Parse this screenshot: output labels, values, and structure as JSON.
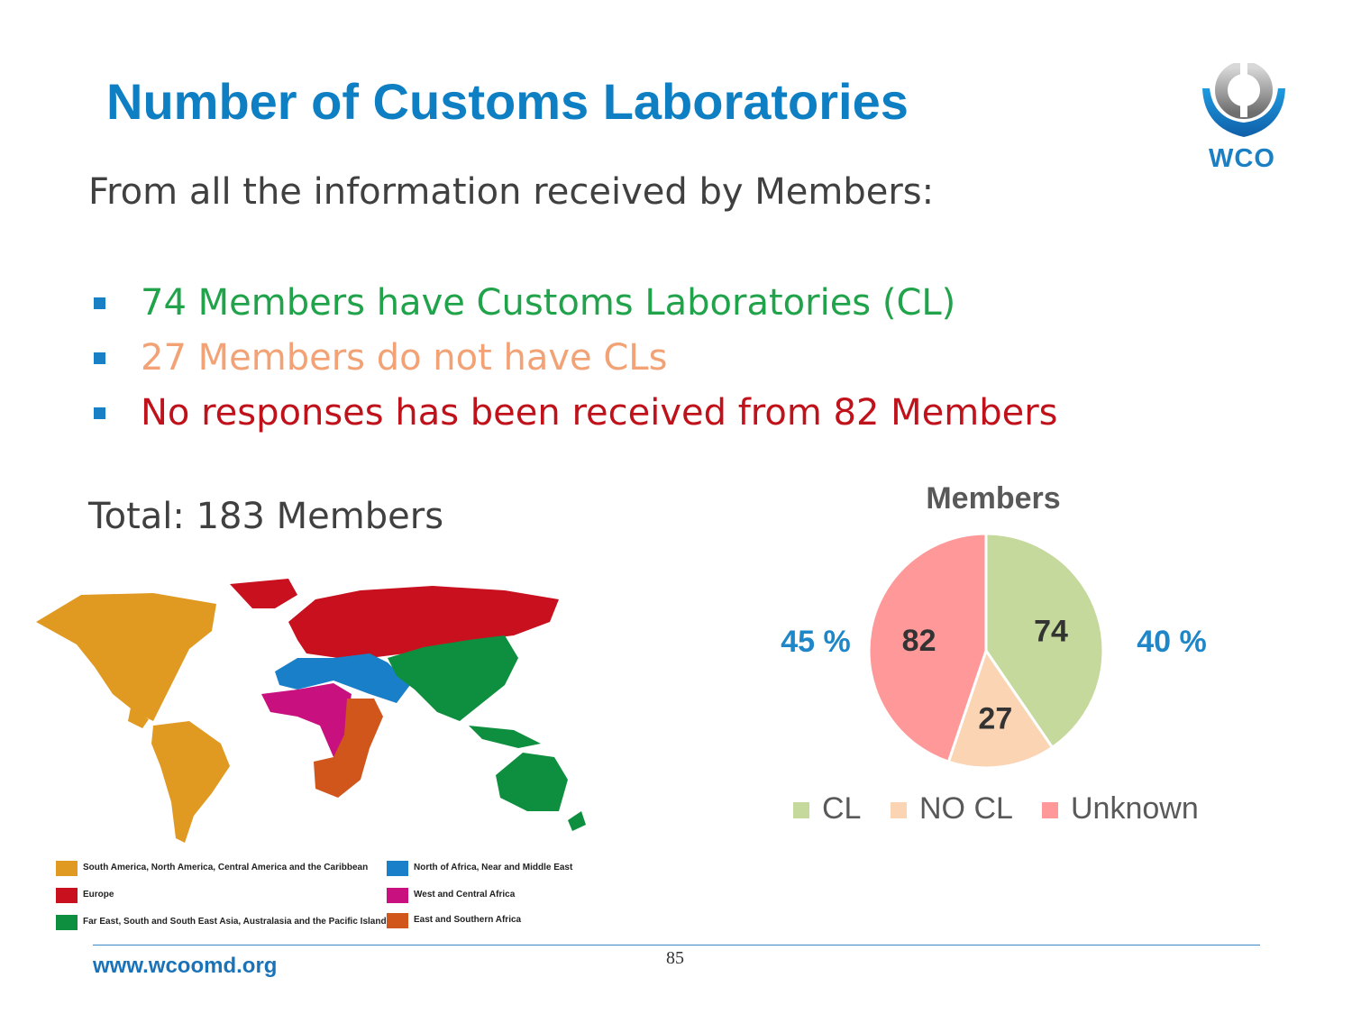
{
  "title": "Number of Customs Laboratories",
  "logo_text": "WCO",
  "intro": "From all the information received by Members:",
  "bullets": [
    "74 Members have Customs Laboratories (CL)",
    "27 Members do not have CLs",
    "No responses has been received from 82 Members"
  ],
  "total": "Total: 183 Members",
  "map_legend": [
    {
      "label": "South America, North America, Central America and the Caribbean",
      "color": "#e09a22"
    },
    {
      "label": "North of Africa, Near and Middle East",
      "color": "#1a7fc9"
    },
    {
      "label": "Europe",
      "color": "#c8101e"
    },
    {
      "label": "West and Central Africa",
      "color": "#c8117f"
    },
    {
      "label": "Far East, South and South East Asia, Australasia and the Pacific Islands",
      "color": "#0e8f3f"
    },
    {
      "label": "East and Southern Africa",
      "color": "#d0561c"
    }
  ],
  "chart_data": {
    "type": "pie",
    "title": "Members",
    "categories": [
      "CL",
      "NO CL",
      "Unknown"
    ],
    "values": [
      74,
      27,
      82
    ],
    "colors": [
      "#c4d99b",
      "#fbd4b4",
      "#ff9999"
    ],
    "outer_labels": {
      "left": "45 %",
      "right": "40 %"
    },
    "legend_position": "bottom"
  },
  "footer": {
    "url": "www.wcoomd.org",
    "page_number": "85"
  }
}
